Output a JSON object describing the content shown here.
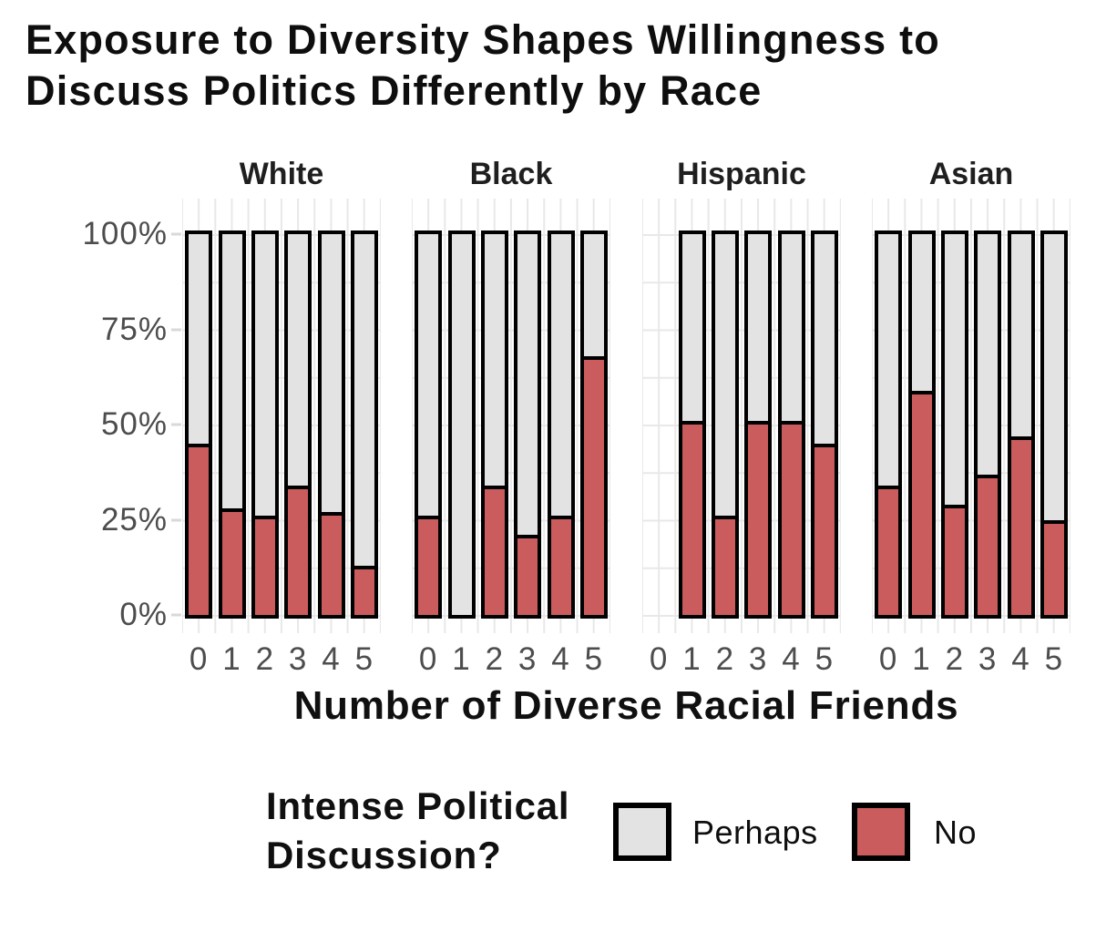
{
  "page": {
    "background": "#ffffff"
  },
  "chart_data": {
    "type": "bar",
    "stacked": true,
    "percent_scale": true,
    "title": "Exposure to Diversity Shapes Willingness to Discuss Politics Differently by Race",
    "title_lines": [
      "Exposure to Diversity Shapes Willingness to",
      "Discuss Politics Differently by Race"
    ],
    "facets": [
      "White",
      "Black",
      "Hispanic",
      "Asian"
    ],
    "x_tick_labels": [
      "0",
      "1",
      "2",
      "3",
      "4",
      "5"
    ],
    "xlabel": "Number of Diverse Racial Friends",
    "y_tick_labels": [
      "100%",
      "75%",
      "50%",
      "25%",
      "0%"
    ],
    "ylim": [
      0,
      100
    ],
    "grid": true,
    "bar_outline_color": "#000000",
    "legend": {
      "position": "bottom",
      "title": "Intense Political Discussion?",
      "title_lines": [
        "Intense Political",
        "Discussion?"
      ],
      "entries": [
        {
          "label": "Perhaps",
          "color": "#e3e3e3"
        },
        {
          "label": "No",
          "color": "#ca5c5d"
        }
      ]
    },
    "series_note": "Bars stack to 100%: 'No' (red) on bottom, 'Perhaps' (gray) fills the remainder. A null means no bar drawn for that x value.",
    "no_pct_by_facet": {
      "White": [
        44,
        27,
        25,
        33,
        26,
        12
      ],
      "Black": [
        25,
        0,
        33,
        20,
        25,
        67
      ],
      "Hispanic": [
        null,
        50,
        25,
        50,
        50,
        44
      ],
      "Asian": [
        33,
        58,
        28,
        36,
        46,
        24
      ]
    }
  }
}
